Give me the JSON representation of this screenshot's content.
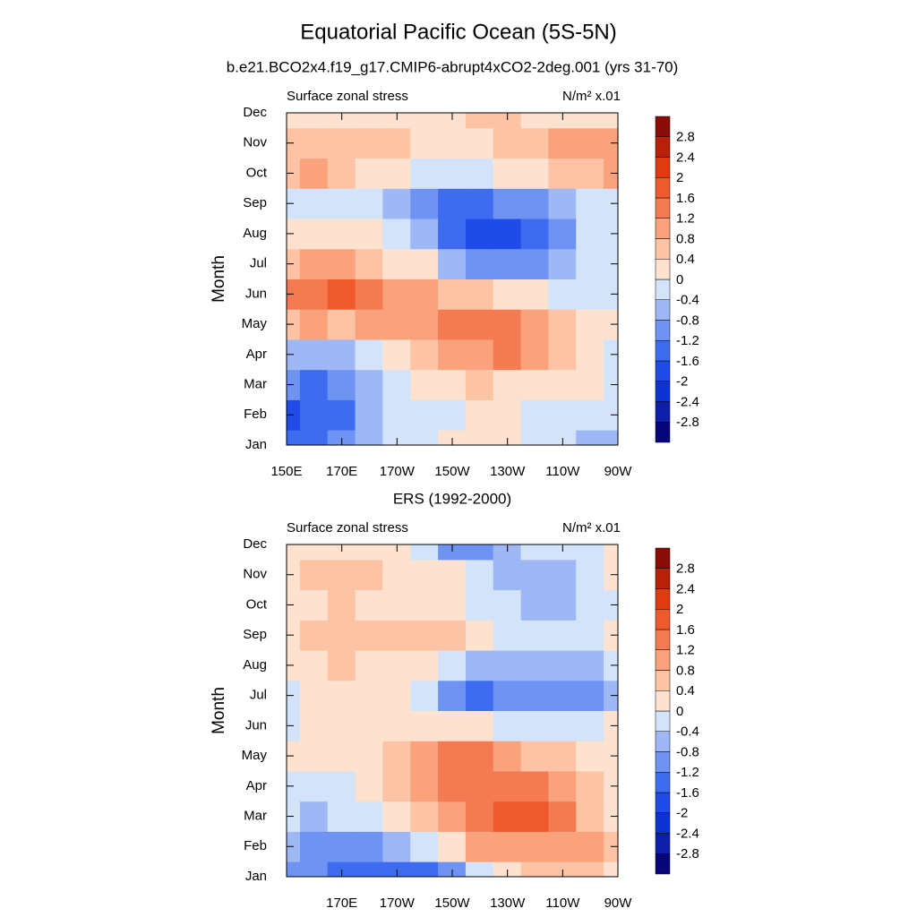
{
  "chart_data": [
    {
      "type": "contour",
      "title": "Equatorial Pacific Ocean (5S-5N)",
      "subtitle": "b.e21.BCO2x4.f19_g17.CMIP6-abrupt4xCO2-2deg.001 (yrs 31-70)",
      "left_label": "Surface zonal stress",
      "units": "N/m² x.01",
      "ylabel": "Month",
      "xlim": [
        150,
        270
      ],
      "xticks": [
        {
          "value": 150,
          "label": "150E"
        },
        {
          "value": 170,
          "label": "170E"
        },
        {
          "value": 190,
          "label": "170W"
        },
        {
          "value": 210,
          "label": "150W"
        },
        {
          "value": 230,
          "label": "130W"
        },
        {
          "value": 250,
          "label": "110W"
        },
        {
          "value": 270,
          "label": "90W"
        }
      ],
      "categories": [
        "Jan",
        "Feb",
        "Mar",
        "Apr",
        "May",
        "Jun",
        "Jul",
        "Aug",
        "Sep",
        "Oct",
        "Nov",
        "Dec"
      ],
      "x": [
        150,
        160,
        170,
        180,
        190,
        200,
        210,
        220,
        230,
        240,
        250,
        260,
        270
      ],
      "z": [
        [
          -1.4,
          -1.4,
          -1.2,
          -0.6,
          -0.3,
          -0.2,
          0.2,
          0.2,
          0.1,
          -0.2,
          -0.3,
          -0.6,
          -0.6
        ],
        [
          -1.7,
          -1.5,
          -1.3,
          -0.6,
          -0.3,
          -0.2,
          -0.1,
          0.1,
          0.1,
          -0.1,
          -0.2,
          -0.4,
          -0.4
        ],
        [
          -1.2,
          -1.3,
          -1.0,
          -0.7,
          -0.3,
          0.1,
          0.3,
          0.4,
          0.3,
          0.2,
          0.1,
          0.0,
          -0.1
        ],
        [
          -0.6,
          -0.6,
          -0.5,
          -0.3,
          0.2,
          0.5,
          0.8,
          1.0,
          1.2,
          1.1,
          0.7,
          0.3,
          -0.1
        ],
        [
          0.6,
          0.8,
          0.7,
          0.8,
          1.0,
          1.0,
          1.2,
          1.3,
          1.2,
          0.9,
          0.5,
          0.2,
          0.0
        ],
        [
          1.3,
          1.5,
          1.6,
          1.3,
          1.0,
          0.8,
          0.6,
          0.4,
          0.1,
          0.0,
          -0.1,
          -0.1,
          -0.1
        ],
        [
          0.7,
          0.8,
          0.8,
          0.6,
          0.3,
          0.0,
          -0.5,
          -0.9,
          -1.0,
          -0.9,
          -0.6,
          -0.3,
          -0.2
        ],
        [
          0.2,
          0.3,
          0.2,
          0.1,
          -0.2,
          -0.8,
          -1.3,
          -1.7,
          -1.7,
          -1.4,
          -0.9,
          -0.4,
          -0.2
        ],
        [
          -0.1,
          -0.1,
          -0.2,
          -0.4,
          -0.7,
          -1.0,
          -1.3,
          -1.4,
          -1.2,
          -0.9,
          -0.5,
          -0.2,
          -0.1
        ],
        [
          0.5,
          0.8,
          0.6,
          0.3,
          0.0,
          -0.2,
          -0.3,
          -0.2,
          0.0,
          0.2,
          0.4,
          0.6,
          0.8
        ],
        [
          0.5,
          0.6,
          0.6,
          0.5,
          0.4,
          0.3,
          0.2,
          0.3,
          0.5,
          0.6,
          0.8,
          0.9,
          0.9
        ],
        [
          0.2,
          0.3,
          0.3,
          0.3,
          0.2,
          0.2,
          0.2,
          0.4,
          0.4,
          0.3,
          0.2,
          0.1,
          0.0
        ]
      ],
      "levels": [
        -2.8,
        -2.4,
        -2,
        -1.6,
        -1.2,
        -0.8,
        -0.4,
        0,
        0.4,
        0.8,
        1.2,
        1.6,
        2,
        2.4,
        2.8
      ],
      "colors": [
        "#06067a",
        "#0d1fa8",
        "#0c33d0",
        "#1f4be8",
        "#3e6cf0",
        "#6f93f2",
        "#9db8f5",
        "#d3e4fa",
        "#fde3cf",
        "#fcc3a4",
        "#f9a27c",
        "#f47a52",
        "#ee5a2c",
        "#e03a10",
        "#b8200a",
        "#8a0c06"
      ]
    },
    {
      "type": "contour",
      "title": "ERS (1992-2000)",
      "left_label": "Surface zonal stress",
      "units": "N/m² x.01",
      "ylabel": "Month",
      "xlim": [
        150,
        270
      ],
      "xticks": [
        {
          "value": 170,
          "label": "170E"
        },
        {
          "value": 190,
          "label": "170W"
        },
        {
          "value": 210,
          "label": "150W"
        },
        {
          "value": 230,
          "label": "130W"
        },
        {
          "value": 250,
          "label": "110W"
        },
        {
          "value": 270,
          "label": "90W"
        }
      ],
      "categories": [
        "Jan",
        "Feb",
        "Mar",
        "Apr",
        "May",
        "Jun",
        "Jul",
        "Aug",
        "Sep",
        "Oct",
        "Nov",
        "Dec"
      ],
      "x": [
        150,
        160,
        170,
        180,
        190,
        200,
        210,
        220,
        230,
        240,
        250,
        260,
        270
      ],
      "z": [
        [
          -1.0,
          -1.2,
          -1.3,
          -1.4,
          -1.5,
          -1.3,
          -0.9,
          -0.3,
          0.1,
          0.5,
          0.7,
          0.5,
          0.3
        ],
        [
          -0.8,
          -1.2,
          -1.2,
          -1.0,
          -0.6,
          -0.2,
          0.2,
          0.8,
          0.9,
          1.0,
          1.0,
          0.8,
          0.4
        ],
        [
          -0.2,
          -0.5,
          -0.4,
          -0.2,
          0.1,
          0.4,
          0.9,
          1.3,
          1.7,
          1.6,
          1.2,
          0.6,
          0.2
        ],
        [
          -0.2,
          -0.3,
          -0.1,
          0.1,
          0.4,
          0.8,
          1.3,
          1.5,
          1.3,
          1.2,
          0.9,
          0.5,
          0.2
        ],
        [
          0.1,
          0.2,
          0.2,
          0.3,
          0.6,
          1.1,
          1.3,
          1.2,
          0.9,
          0.7,
          0.5,
          0.3,
          0.1
        ],
        [
          -0.2,
          0.0,
          0.2,
          0.3,
          0.3,
          0.3,
          0.2,
          0.1,
          -0.1,
          -0.2,
          -0.3,
          -0.2,
          0.0
        ],
        [
          -0.1,
          0.1,
          0.3,
          0.2,
          0.0,
          -0.3,
          -0.9,
          -1.3,
          -1.2,
          -1.0,
          -1.0,
          -1.2,
          -0.6
        ],
        [
          0.1,
          0.3,
          0.4,
          0.2,
          0.1,
          0.0,
          -0.4,
          -0.6,
          -0.7,
          -0.8,
          -0.6,
          -0.5,
          -0.2
        ],
        [
          0.2,
          0.4,
          0.5,
          0.4,
          0.5,
          0.5,
          0.4,
          0.1,
          -0.2,
          -0.3,
          -0.2,
          -0.1,
          0.0
        ],
        [
          0.2,
          0.3,
          0.4,
          0.3,
          0.3,
          0.3,
          0.2,
          -0.1,
          -0.3,
          -0.5,
          -0.5,
          -0.3,
          -0.1
        ],
        [
          0.3,
          0.5,
          0.6,
          0.5,
          0.3,
          0.2,
          0.1,
          -0.3,
          -0.6,
          -0.5,
          -0.5,
          -0.3,
          0.1
        ],
        [
          0.3,
          0.3,
          0.3,
          0.2,
          0.1,
          -0.3,
          -1.2,
          -1.0,
          -0.6,
          -0.3,
          -0.4,
          -0.1,
          0.1
        ]
      ],
      "levels": [
        -2.8,
        -2.4,
        -2,
        -1.6,
        -1.2,
        -0.8,
        -0.4,
        0,
        0.4,
        0.8,
        1.2,
        1.6,
        2,
        2.4,
        2.8
      ],
      "colors": [
        "#06067a",
        "#0d1fa8",
        "#0c33d0",
        "#1f4be8",
        "#3e6cf0",
        "#6f93f2",
        "#9db8f5",
        "#d3e4fa",
        "#fde3cf",
        "#fcc3a4",
        "#f9a27c",
        "#f47a52",
        "#ee5a2c",
        "#e03a10",
        "#b8200a",
        "#8a0c06"
      ]
    }
  ]
}
